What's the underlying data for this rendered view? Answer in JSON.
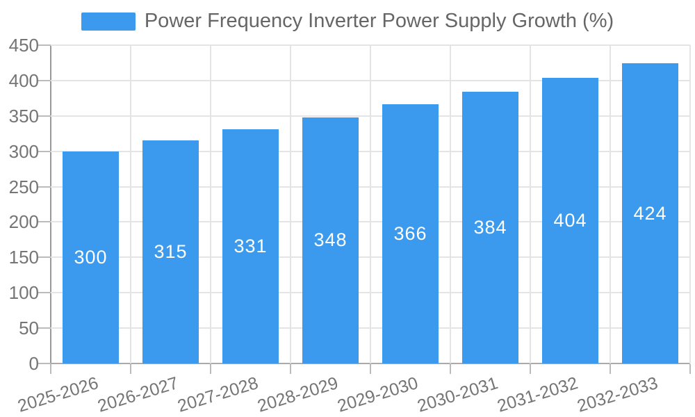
{
  "chart_data": {
    "type": "bar",
    "title": "",
    "legend_position": "top",
    "categories": [
      "2025-2026",
      "2026-2027",
      "2027-2028",
      "2028-2029",
      "2029-2030",
      "2030-2031",
      "2031-2032",
      "2032-2033"
    ],
    "series": [
      {
        "name": "Power Frequency Inverter Power Supply Growth (%)",
        "values": [
          300,
          315,
          331,
          348,
          366,
          384,
          404,
          424
        ]
      }
    ],
    "xlabel": "",
    "ylabel": "",
    "ylim": [
      0,
      450
    ],
    "y_ticks": [
      0,
      50,
      100,
      150,
      200,
      250,
      300,
      350,
      400,
      450
    ],
    "grid": true,
    "bar_color": "#3B9AED",
    "bar_value_label_color": "#FFFFFF",
    "axis_text_color": "#757575",
    "legend_text_color": "#666666"
  }
}
